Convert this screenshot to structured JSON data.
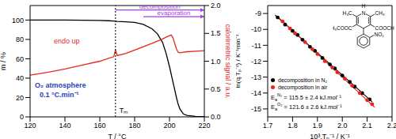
{
  "chart_data": [
    {
      "type": "line",
      "x_label": "T / °C",
      "y_label": "m / %",
      "y2_label": "calorimetric signal / a.u.",
      "x": [
        120,
        130,
        140,
        150,
        160,
        165,
        168,
        169,
        170,
        175,
        180,
        185,
        190,
        193,
        196,
        198,
        200,
        201,
        202,
        203,
        204,
        205,
        206,
        208,
        210,
        215,
        220
      ],
      "series": [
        {
          "color": "#000000",
          "values": [
            100,
            100,
            100,
            99.8,
            99.6,
            99.3,
            99,
            98.8,
            98.6,
            98.2,
            97.5,
            95.5,
            91,
            86,
            77,
            66,
            52,
            44,
            36,
            28,
            20,
            13,
            8,
            3,
            1.5,
            0.5,
            0.2
          ]
        },
        {
          "color": "#e8261f",
          "axis": "y2",
          "values": [
            0.75,
            0.8,
            0.86,
            0.93,
            1.0,
            1.05,
            1.08,
            1.2,
            1.1,
            1.14,
            1.2,
            1.26,
            1.32,
            1.36,
            1.4,
            1.43,
            1.46,
            1.47,
            1.42,
            1.32,
            1.22,
            1.16,
            1.15,
            1.16,
            1.17,
            1.18,
            1.19
          ]
        }
      ],
      "xlim": [
        120,
        220
      ],
      "xticks": [
        120,
        140,
        160,
        180,
        200,
        220
      ],
      "ylim": [
        0,
        115
      ],
      "yticks": [
        0,
        20,
        40,
        60,
        80,
        100
      ],
      "y2lim": [
        0,
        2
      ],
      "y2ticks": [
        {
          "value": 0,
          "label": "0.0"
        },
        0.5,
        {
          "value": 1,
          "label": "1.0"
        },
        1.5,
        {
          "value": 2,
          "label": "2.0"
        }
      ],
      "annotations": [
        {
          "text": "endo up",
          "color": "#e8261f"
        },
        {
          "text": "O₂ atmosphere",
          "color": "#1f3fbf"
        },
        {
          "text": "0.1 °C.min⁻¹",
          "color": "#1f3fbf"
        }
      ],
      "markers": [
        {
          "label": "Tₘ",
          "x": 169
        }
      ],
      "ranges": [
        {
          "label": "decomposition",
          "x": [
            169,
            220
          ],
          "color": "#a040e0"
        },
        {
          "label": "evaporation",
          "x": [
            185,
            220
          ],
          "color": "#a040e0"
        }
      ],
      "grid": false
    },
    {
      "type": "scatter",
      "x_label": "10³.Tₚ⁻¹ / K⁻¹",
      "y_label": "ln(q.Tₚ⁻²) / K⁻¹min⁻¹",
      "series": [
        {
          "name": "decomposition in N₂",
          "color": "#000000",
          "marker": "circle",
          "x": [
            1.74,
            1.77,
            1.8,
            1.82,
            1.84,
            1.87,
            1.89,
            1.92,
            1.95,
            1.97,
            2.0,
            2.03,
            2.05,
            2.08,
            2.11
          ],
          "values": [
            -9.25,
            -9.7,
            -10.1,
            -10.35,
            -10.65,
            -11.1,
            -11.35,
            -11.8,
            -12.2,
            -12.45,
            -12.9,
            -13.3,
            -13.6,
            -14.0,
            -14.4
          ],
          "fit": {
            "x": [
              1.73,
              2.12
            ],
            "values": [
              -9.1,
              -14.55
            ]
          }
        },
        {
          "name": "decomposition in air",
          "color": "#e8261f",
          "marker": "circle",
          "x": [
            1.76,
            1.79,
            1.81,
            1.85,
            1.88,
            1.9,
            1.93,
            1.96,
            1.98,
            2.01,
            2.04,
            2.07,
            2.1,
            2.12
          ],
          "values": [
            -9.5,
            -9.95,
            -10.25,
            -10.8,
            -11.25,
            -11.55,
            -12.0,
            -12.4,
            -12.7,
            -13.1,
            -13.55,
            -14.0,
            -14.45,
            -14.7
          ],
          "fit": {
            "x": [
              1.74,
              2.13
            ],
            "values": [
              -9.2,
              -14.9
            ]
          }
        }
      ],
      "xlim": [
        1.7,
        2.2
      ],
      "xticks": [
        1.7,
        1.8,
        1.9,
        {
          "value": 2,
          "label": "2.0"
        },
        2.1,
        2.2
      ],
      "ylim": [
        -15.5,
        -8.5
      ],
      "yticks": [
        -15,
        -14,
        -13,
        -12,
        -11,
        -10,
        -9
      ],
      "legend": "lower left",
      "grid": false,
      "annotations": [
        {
          "text": "E",
          "sub": "a",
          "sup": "N₂",
          "rest": " = 115.5 ± 2.4 kJ.mol⁻¹"
        },
        {
          "text": "E",
          "sub": "a",
          "sup": "O₂",
          "rest": " = 121.6 ± 2.6 kJ.mol⁻¹"
        }
      ],
      "structure_labels": {
        "n": "N",
        "h": "H",
        "methyl_left": "H₃C",
        "methyl_right": "CH₃",
        "ester_left": "H₃COOC",
        "ester_right": "COOCH₃",
        "nitro": "NO₂"
      }
    }
  ]
}
